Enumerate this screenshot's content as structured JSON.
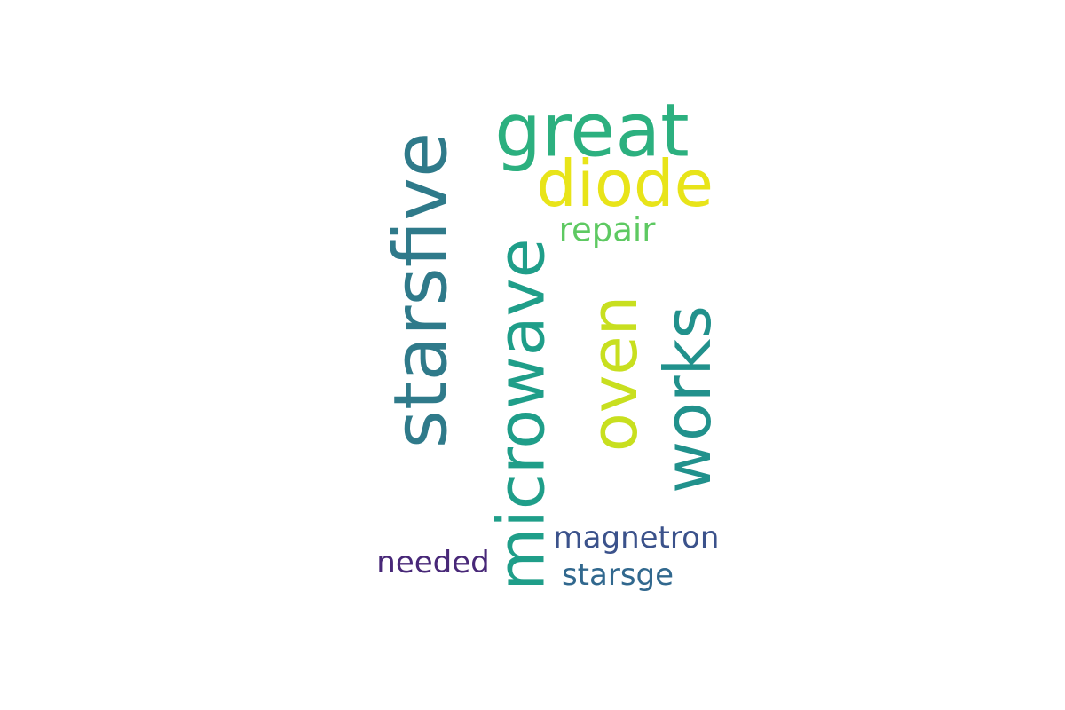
{
  "wordcloud": {
    "words": [
      {
        "key": "starsfive",
        "text": "starsfive",
        "orientation": "vertical",
        "color": "#2f7a8a"
      },
      {
        "key": "microwave",
        "text": "microwave",
        "orientation": "vertical",
        "color": "#1f9e89"
      },
      {
        "key": "great",
        "text": "great",
        "orientation": "horizontal",
        "color": "#2cb07f"
      },
      {
        "key": "diode",
        "text": "diode",
        "orientation": "horizontal",
        "color": "#e8e419"
      },
      {
        "key": "repair",
        "text": "repair",
        "orientation": "horizontal",
        "color": "#5ec962"
      },
      {
        "key": "oven",
        "text": "oven",
        "orientation": "vertical",
        "color": "#c8df1f"
      },
      {
        "key": "works",
        "text": "works",
        "orientation": "vertical",
        "color": "#21918c"
      },
      {
        "key": "magnetron",
        "text": "magnetron",
        "orientation": "horizontal",
        "color": "#3b528b"
      },
      {
        "key": "needed",
        "text": "needed",
        "orientation": "horizontal",
        "color": "#482878"
      },
      {
        "key": "starsge",
        "text": "starsge",
        "orientation": "horizontal",
        "color": "#31688e"
      }
    ]
  }
}
